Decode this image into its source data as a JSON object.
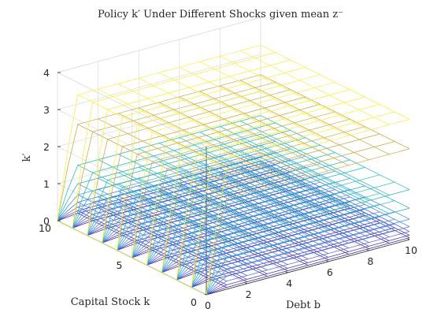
{
  "chart_data": {
    "type": "surface",
    "title": "Policy k′ Under Different Shocks given mean z⁻",
    "xlabel": "Debt b",
    "ylabel": "Capital Stock k",
    "zlabel": "k′",
    "xlim": [
      0,
      10
    ],
    "ylim": [
      0,
      10
    ],
    "zlim": [
      0,
      4
    ],
    "xticks": [
      "0",
      "2",
      "4",
      "6",
      "8",
      "10"
    ],
    "yticks": [
      "0",
      "5",
      "10"
    ],
    "zticks": [
      "0",
      "1",
      "2",
      "3",
      "4"
    ],
    "grid": true,
    "colormap": "parula",
    "series": [
      {
        "plateau": 0.05,
        "color": "#3e26a8"
      },
      {
        "plateau": 0.12,
        "color": "#4339c8"
      },
      {
        "plateau": 0.22,
        "color": "#4856e2"
      },
      {
        "plateau": 0.35,
        "color": "#3f73f5"
      },
      {
        "plateau": 0.55,
        "color": "#2b90f0"
      },
      {
        "plateau": 0.85,
        "color": "#1cabd8"
      },
      {
        "plateau": 1.35,
        "color": "#21bdb4"
      },
      {
        "plateau": 2.45,
        "color": "#c8a83a"
      },
      {
        "plateau": 3.25,
        "color": "#f8f03a"
      }
    ]
  }
}
